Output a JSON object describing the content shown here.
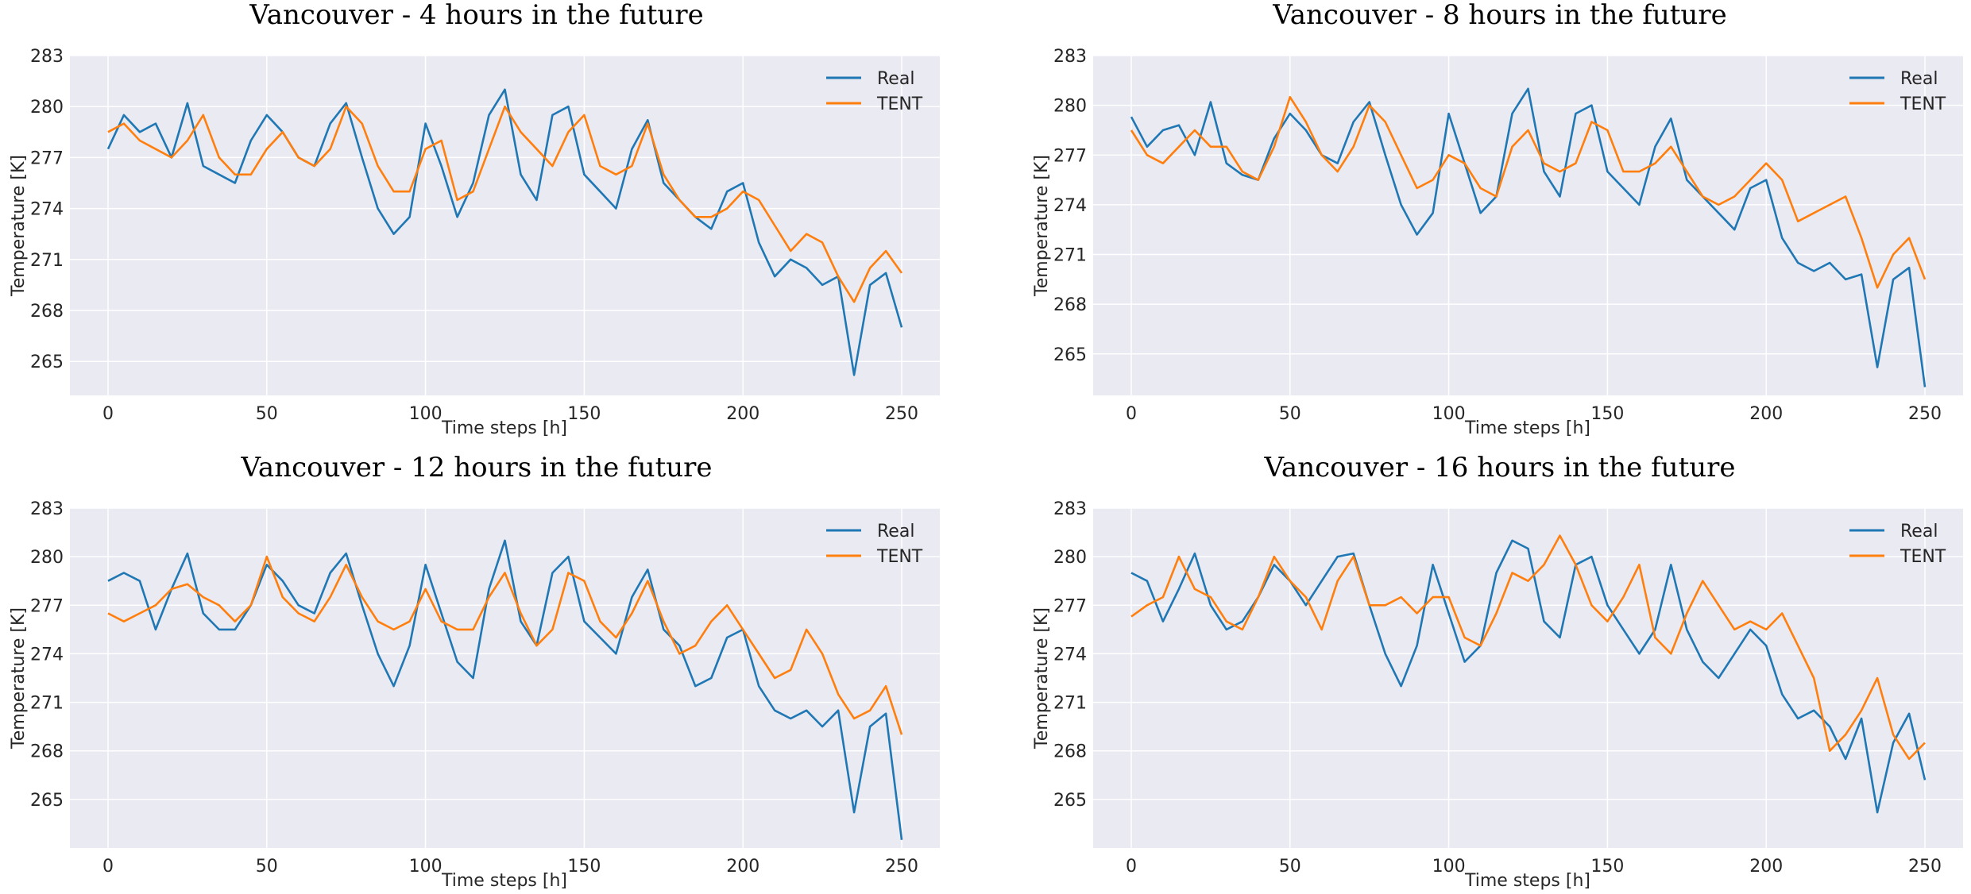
{
  "colors": {
    "real": "#1f77b4",
    "tent": "#ff7f0e",
    "plot_bg": "#eaeaf2",
    "grid": "#ffffff"
  },
  "chart_data": [
    {
      "type": "line",
      "title": "Vancouver - 4 hours in the future",
      "xlabel": "Time steps [h]",
      "ylabel": "Temperature [K]",
      "xlim": [
        -12,
        262
      ],
      "ylim": [
        263,
        283
      ],
      "xticks": [
        0,
        50,
        100,
        150,
        200,
        250
      ],
      "yticks": [
        265,
        268,
        271,
        274,
        277,
        280,
        283
      ],
      "legend": "top-right",
      "grid": true,
      "series": [
        {
          "name": "Real",
          "color": "#1f77b4",
          "x": [
            0,
            5,
            10,
            15,
            20,
            25,
            30,
            35,
            40,
            45,
            50,
            55,
            60,
            65,
            70,
            75,
            80,
            85,
            90,
            95,
            100,
            105,
            110,
            115,
            120,
            125,
            130,
            135,
            140,
            145,
            150,
            155,
            160,
            165,
            170,
            175,
            180,
            185,
            190,
            195,
            200,
            205,
            210,
            215,
            220,
            225,
            230,
            235,
            240,
            245,
            250
          ],
          "y": [
            277.5,
            279.5,
            278.5,
            279,
            277,
            280.2,
            276.5,
            276,
            275.5,
            278,
            279.5,
            278.5,
            277,
            276.5,
            279,
            280.2,
            277,
            274,
            272.5,
            273.5,
            279,
            276.5,
            273.5,
            275.5,
            279.5,
            281,
            276,
            274.5,
            279.5,
            280,
            276,
            275,
            274,
            277.5,
            279.2,
            275.5,
            274.5,
            273.5,
            272.8,
            275,
            275.5,
            272,
            270,
            271,
            270.5,
            269.5,
            270,
            264.2,
            269.5,
            270.2,
            267
          ]
        },
        {
          "name": "TENT",
          "color": "#ff7f0e",
          "x": [
            0,
            5,
            10,
            15,
            20,
            25,
            30,
            35,
            40,
            45,
            50,
            55,
            60,
            65,
            70,
            75,
            80,
            85,
            90,
            95,
            100,
            105,
            110,
            115,
            120,
            125,
            130,
            135,
            140,
            145,
            150,
            155,
            160,
            165,
            170,
            175,
            180,
            185,
            190,
            195,
            200,
            205,
            210,
            215,
            220,
            225,
            230,
            235,
            240,
            245,
            250
          ],
          "y": [
            278.5,
            279,
            278,
            277.5,
            277,
            278,
            279.5,
            277,
            276,
            276,
            277.5,
            278.5,
            277,
            276.5,
            277.5,
            280,
            279,
            276.5,
            275,
            275,
            277.5,
            278,
            274.5,
            275,
            277.5,
            280,
            278.5,
            277.5,
            276.5,
            278.5,
            279.5,
            276.5,
            276,
            276.5,
            279,
            276,
            274.5,
            273.5,
            273.5,
            274,
            275,
            274.5,
            273,
            271.5,
            272.5,
            272,
            270,
            268.5,
            270.5,
            271.5,
            270.2
          ]
        }
      ]
    },
    {
      "type": "line",
      "title": "Vancouver - 8 hours in the future",
      "xlabel": "Time steps [h]",
      "ylabel": "Temperature [K]",
      "xlim": [
        -12,
        262
      ],
      "ylim": [
        262.5,
        283
      ],
      "xticks": [
        0,
        50,
        100,
        150,
        200,
        250
      ],
      "yticks": [
        265,
        268,
        271,
        274,
        277,
        280,
        283
      ],
      "legend": "top-right",
      "grid": true,
      "series": [
        {
          "name": "Real",
          "color": "#1f77b4",
          "x": [
            0,
            5,
            10,
            15,
            20,
            25,
            30,
            35,
            40,
            45,
            50,
            55,
            60,
            65,
            70,
            75,
            80,
            85,
            90,
            95,
            100,
            105,
            110,
            115,
            120,
            125,
            130,
            135,
            140,
            145,
            150,
            155,
            160,
            165,
            170,
            175,
            180,
            185,
            190,
            195,
            200,
            205,
            210,
            215,
            220,
            225,
            230,
            235,
            240,
            245,
            250
          ],
          "y": [
            279.3,
            277.5,
            278.5,
            278.8,
            277,
            280.2,
            276.5,
            275.8,
            275.5,
            278,
            279.5,
            278.5,
            277,
            276.5,
            279,
            280.2,
            277,
            274,
            272.2,
            273.5,
            279.5,
            276.5,
            273.5,
            274.5,
            279.5,
            281,
            276,
            274.5,
            279.5,
            280,
            276,
            275,
            274,
            277.5,
            279.2,
            275.5,
            274.5,
            273.5,
            272.5,
            275,
            275.5,
            272,
            270.5,
            270,
            270.5,
            269.5,
            269.8,
            264.2,
            269.5,
            270.2,
            263
          ]
        },
        {
          "name": "TENT",
          "color": "#ff7f0e",
          "x": [
            0,
            5,
            10,
            15,
            20,
            25,
            30,
            35,
            40,
            45,
            50,
            55,
            60,
            65,
            70,
            75,
            80,
            85,
            90,
            95,
            100,
            105,
            110,
            115,
            120,
            125,
            130,
            135,
            140,
            145,
            150,
            155,
            160,
            165,
            170,
            175,
            180,
            185,
            190,
            195,
            200,
            205,
            210,
            215,
            220,
            225,
            230,
            235,
            240,
            245,
            250
          ],
          "y": [
            278.5,
            277,
            276.5,
            277.5,
            278.5,
            277.5,
            277.5,
            276,
            275.5,
            277.5,
            280.5,
            279,
            277,
            276,
            277.5,
            280,
            279,
            277,
            275,
            275.5,
            277,
            276.5,
            275,
            274.5,
            277.5,
            278.5,
            276.5,
            276,
            276.5,
            279,
            278.5,
            276,
            276,
            276.5,
            277.5,
            276,
            274.5,
            274,
            274.5,
            275.5,
            276.5,
            275.5,
            273,
            273.5,
            274,
            274.5,
            272,
            269,
            271,
            272,
            269.5
          ]
        }
      ]
    },
    {
      "type": "line",
      "title": "Vancouver - 12 hours in the future",
      "xlabel": "Time steps [h]",
      "ylabel": "Temperature [K]",
      "xlim": [
        -12,
        262
      ],
      "ylim": [
        262,
        283
      ],
      "xticks": [
        0,
        50,
        100,
        150,
        200,
        250
      ],
      "yticks": [
        265,
        268,
        271,
        274,
        277,
        280,
        283
      ],
      "legend": "top-right",
      "grid": true,
      "series": [
        {
          "name": "Real",
          "color": "#1f77b4",
          "x": [
            0,
            5,
            10,
            15,
            20,
            25,
            30,
            35,
            40,
            45,
            50,
            55,
            60,
            65,
            70,
            75,
            80,
            85,
            90,
            95,
            100,
            105,
            110,
            115,
            120,
            125,
            130,
            135,
            140,
            145,
            150,
            155,
            160,
            165,
            170,
            175,
            180,
            185,
            190,
            195,
            200,
            205,
            210,
            215,
            220,
            225,
            230,
            235,
            240,
            245,
            250
          ],
          "y": [
            278.5,
            279,
            278.5,
            275.5,
            278,
            280.2,
            276.5,
            275.5,
            275.5,
            277,
            279.5,
            278.5,
            277,
            276.5,
            279,
            280.2,
            277,
            274,
            272,
            274.5,
            279.5,
            276.5,
            273.5,
            272.5,
            278,
            281,
            276,
            274.5,
            279,
            280,
            276,
            275,
            274,
            277.5,
            279.2,
            275.5,
            274.5,
            272,
            272.5,
            275,
            275.5,
            272,
            270.5,
            270,
            270.5,
            269.5,
            270.5,
            264.2,
            269.5,
            270.3,
            262.5
          ]
        },
        {
          "name": "TENT",
          "color": "#ff7f0e",
          "x": [
            0,
            5,
            10,
            15,
            20,
            25,
            30,
            35,
            40,
            45,
            50,
            55,
            60,
            65,
            70,
            75,
            80,
            85,
            90,
            95,
            100,
            105,
            110,
            115,
            120,
            125,
            130,
            135,
            140,
            145,
            150,
            155,
            160,
            165,
            170,
            175,
            180,
            185,
            190,
            195,
            200,
            205,
            210,
            215,
            220,
            225,
            230,
            235,
            240,
            245,
            250
          ],
          "y": [
            276.5,
            276,
            276.5,
            277,
            278,
            278.3,
            277.5,
            277,
            276,
            277,
            280,
            277.5,
            276.5,
            276,
            277.5,
            279.5,
            277.5,
            276,
            275.5,
            276,
            278,
            276,
            275.5,
            275.5,
            277.5,
            279,
            276.5,
            274.5,
            275.5,
            279,
            278.5,
            276,
            275,
            276.5,
            278.5,
            276,
            274,
            274.5,
            276,
            277,
            275.5,
            274,
            272.5,
            273,
            275.5,
            274,
            271.5,
            270,
            270.5,
            272,
            269
          ]
        }
      ]
    },
    {
      "type": "line",
      "title": "Vancouver - 16 hours in the future",
      "xlabel": "Time steps [h]",
      "ylabel": "Temperature [K]",
      "xlim": [
        -12,
        262
      ],
      "ylim": [
        262,
        283
      ],
      "xticks": [
        0,
        50,
        100,
        150,
        200,
        250
      ],
      "yticks": [
        265,
        268,
        271,
        274,
        277,
        280,
        283
      ],
      "legend": "top-right",
      "grid": true,
      "series": [
        {
          "name": "Real",
          "color": "#1f77b4",
          "x": [
            0,
            5,
            10,
            15,
            20,
            25,
            30,
            35,
            40,
            45,
            50,
            55,
            60,
            65,
            70,
            75,
            80,
            85,
            90,
            95,
            100,
            105,
            110,
            115,
            120,
            125,
            130,
            135,
            140,
            145,
            150,
            155,
            160,
            165,
            170,
            175,
            180,
            185,
            190,
            195,
            200,
            205,
            210,
            215,
            220,
            225,
            230,
            235,
            240,
            245,
            250
          ],
          "y": [
            279,
            278.5,
            276,
            278,
            280.2,
            277,
            275.5,
            276,
            277.5,
            279.5,
            278.5,
            277,
            278.5,
            280,
            280.2,
            277,
            274,
            272,
            274.5,
            279.5,
            276.5,
            273.5,
            274.5,
            279,
            281,
            280.5,
            276,
            275,
            279.5,
            280,
            277,
            275.5,
            274,
            275.5,
            279.5,
            275.5,
            273.5,
            272.5,
            274,
            275.5,
            274.5,
            271.5,
            270,
            270.5,
            269.5,
            267.5,
            270,
            264.2,
            268.5,
            270.3,
            266.2
          ]
        },
        {
          "name": "TENT",
          "color": "#ff7f0e",
          "x": [
            0,
            5,
            10,
            15,
            20,
            25,
            30,
            35,
            40,
            45,
            50,
            55,
            60,
            65,
            70,
            75,
            80,
            85,
            90,
            95,
            100,
            105,
            110,
            115,
            120,
            125,
            130,
            135,
            140,
            145,
            150,
            155,
            160,
            165,
            170,
            175,
            180,
            185,
            190,
            195,
            200,
            205,
            210,
            215,
            220,
            225,
            230,
            235,
            240,
            245,
            250
          ],
          "y": [
            276.3,
            277,
            277.5,
            280,
            278,
            277.5,
            276,
            275.5,
            277.5,
            280,
            278.5,
            277.5,
            275.5,
            278.5,
            280,
            277,
            277,
            277.5,
            276.5,
            277.5,
            277.5,
            275,
            274.5,
            276.5,
            279,
            278.5,
            279.5,
            281.3,
            279.5,
            277,
            276,
            277.5,
            279.5,
            275,
            274,
            276.5,
            278.5,
            277,
            275.5,
            276,
            275.5,
            276.5,
            274.5,
            272.5,
            268,
            269,
            270.5,
            272.5,
            269,
            267.5,
            268.5
          ]
        }
      ]
    }
  ]
}
